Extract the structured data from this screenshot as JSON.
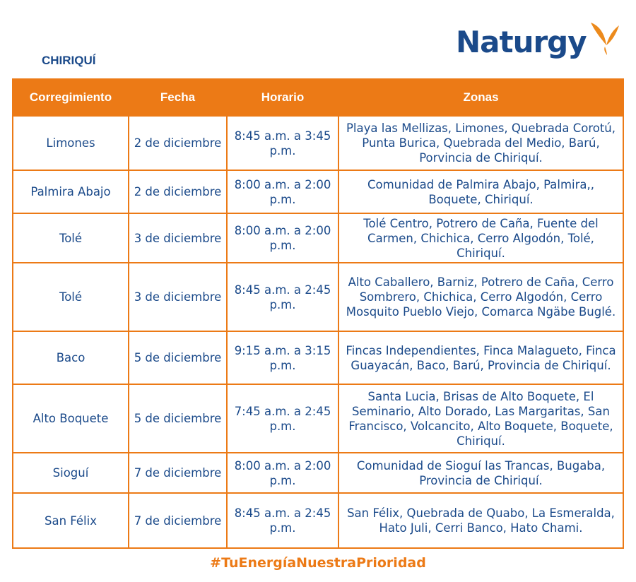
{
  "region": "CHIRIQUÍ",
  "brand": {
    "name": "Naturgy",
    "text_color": "#1b4a8a",
    "wing_color": "#ec8a1c",
    "wing_icon": "butterfly-wing-icon"
  },
  "colors": {
    "accent": "#ec7a16",
    "text": "#1b4a8a"
  },
  "table": {
    "headers": [
      "Corregimiento",
      "Fecha",
      "Horario",
      "Zonas"
    ],
    "rows": [
      {
        "corregimiento": "Limones",
        "fecha": "2 de diciembre",
        "horario": "8:45 a.m. a 3:45 p.m.",
        "zonas": "Playa las Mellizas, Limones, Quebrada Corotú, Punta Burica, Quebrada del Medio, Barú, Porvincia de Chiriquí."
      },
      {
        "corregimiento": "Palmira Abajo",
        "fecha": "2 de diciembre",
        "horario": "8:00 a.m. a 2:00 p.m.",
        "zonas": "Comunidad de Palmira Abajo, Palmira,, Boquete, Chiriquí."
      },
      {
        "corregimiento": "Tolé",
        "fecha": "3 de diciembre",
        "horario": "8:00 a.m. a 2:00 p.m.",
        "zonas": "Tolé Centro, Potrero de Caña, Fuente del Carmen, Chichica, Cerro Algodón, Tolé, Chiriquí."
      },
      {
        "corregimiento": "Tolé",
        "fecha": "3 de diciembre",
        "horario": "8:45 a.m. a 2:45 p.m.",
        "zonas": "Alto Caballero, Barniz, Potrero de Caña, Cerro Sombrero, Chichica, Cerro Algodón, Cerro Mosquito Pueblo Viejo, Comarca Ngäbe Buglé."
      },
      {
        "corregimiento": "Baco",
        "fecha": "5 de diciembre",
        "horario": "9:15 a.m. a 3:15 p.m.",
        "zonas": "Fincas Independientes, Finca Malagueto, Finca Guayacán, Baco, Barú, Provincia de Chiriquí."
      },
      {
        "corregimiento": "Alto Boquete",
        "fecha": "5 de diciembre",
        "horario": "7:45 a.m. a 2:45 p.m.",
        "zonas": "Santa Lucia, Brisas de Alto Boquete, El Seminario, Alto Dorado, Las Margaritas, San Francisco, Volcancito, Alto Boquete, Boquete, Chiriquí."
      },
      {
        "corregimiento": "Sioguí",
        "fecha": "7 de diciembre",
        "horario": "8:00 a.m. a 2:00 p.m.",
        "zonas": "Comunidad de Sioguí las Trancas, Bugaba, Provincia de Chiriquí."
      },
      {
        "corregimiento": "San Félix",
        "fecha": "7 de diciembre",
        "horario": "8:45 a.m. a 2:45 p.m.",
        "zonas": "San Félix, Quebrada de Quabo, La Esmeralda, Hato Juli, Cerri Banco, Hato Chami."
      }
    ]
  },
  "hashtag": "#TuEnergíaNuestraPrioridad"
}
